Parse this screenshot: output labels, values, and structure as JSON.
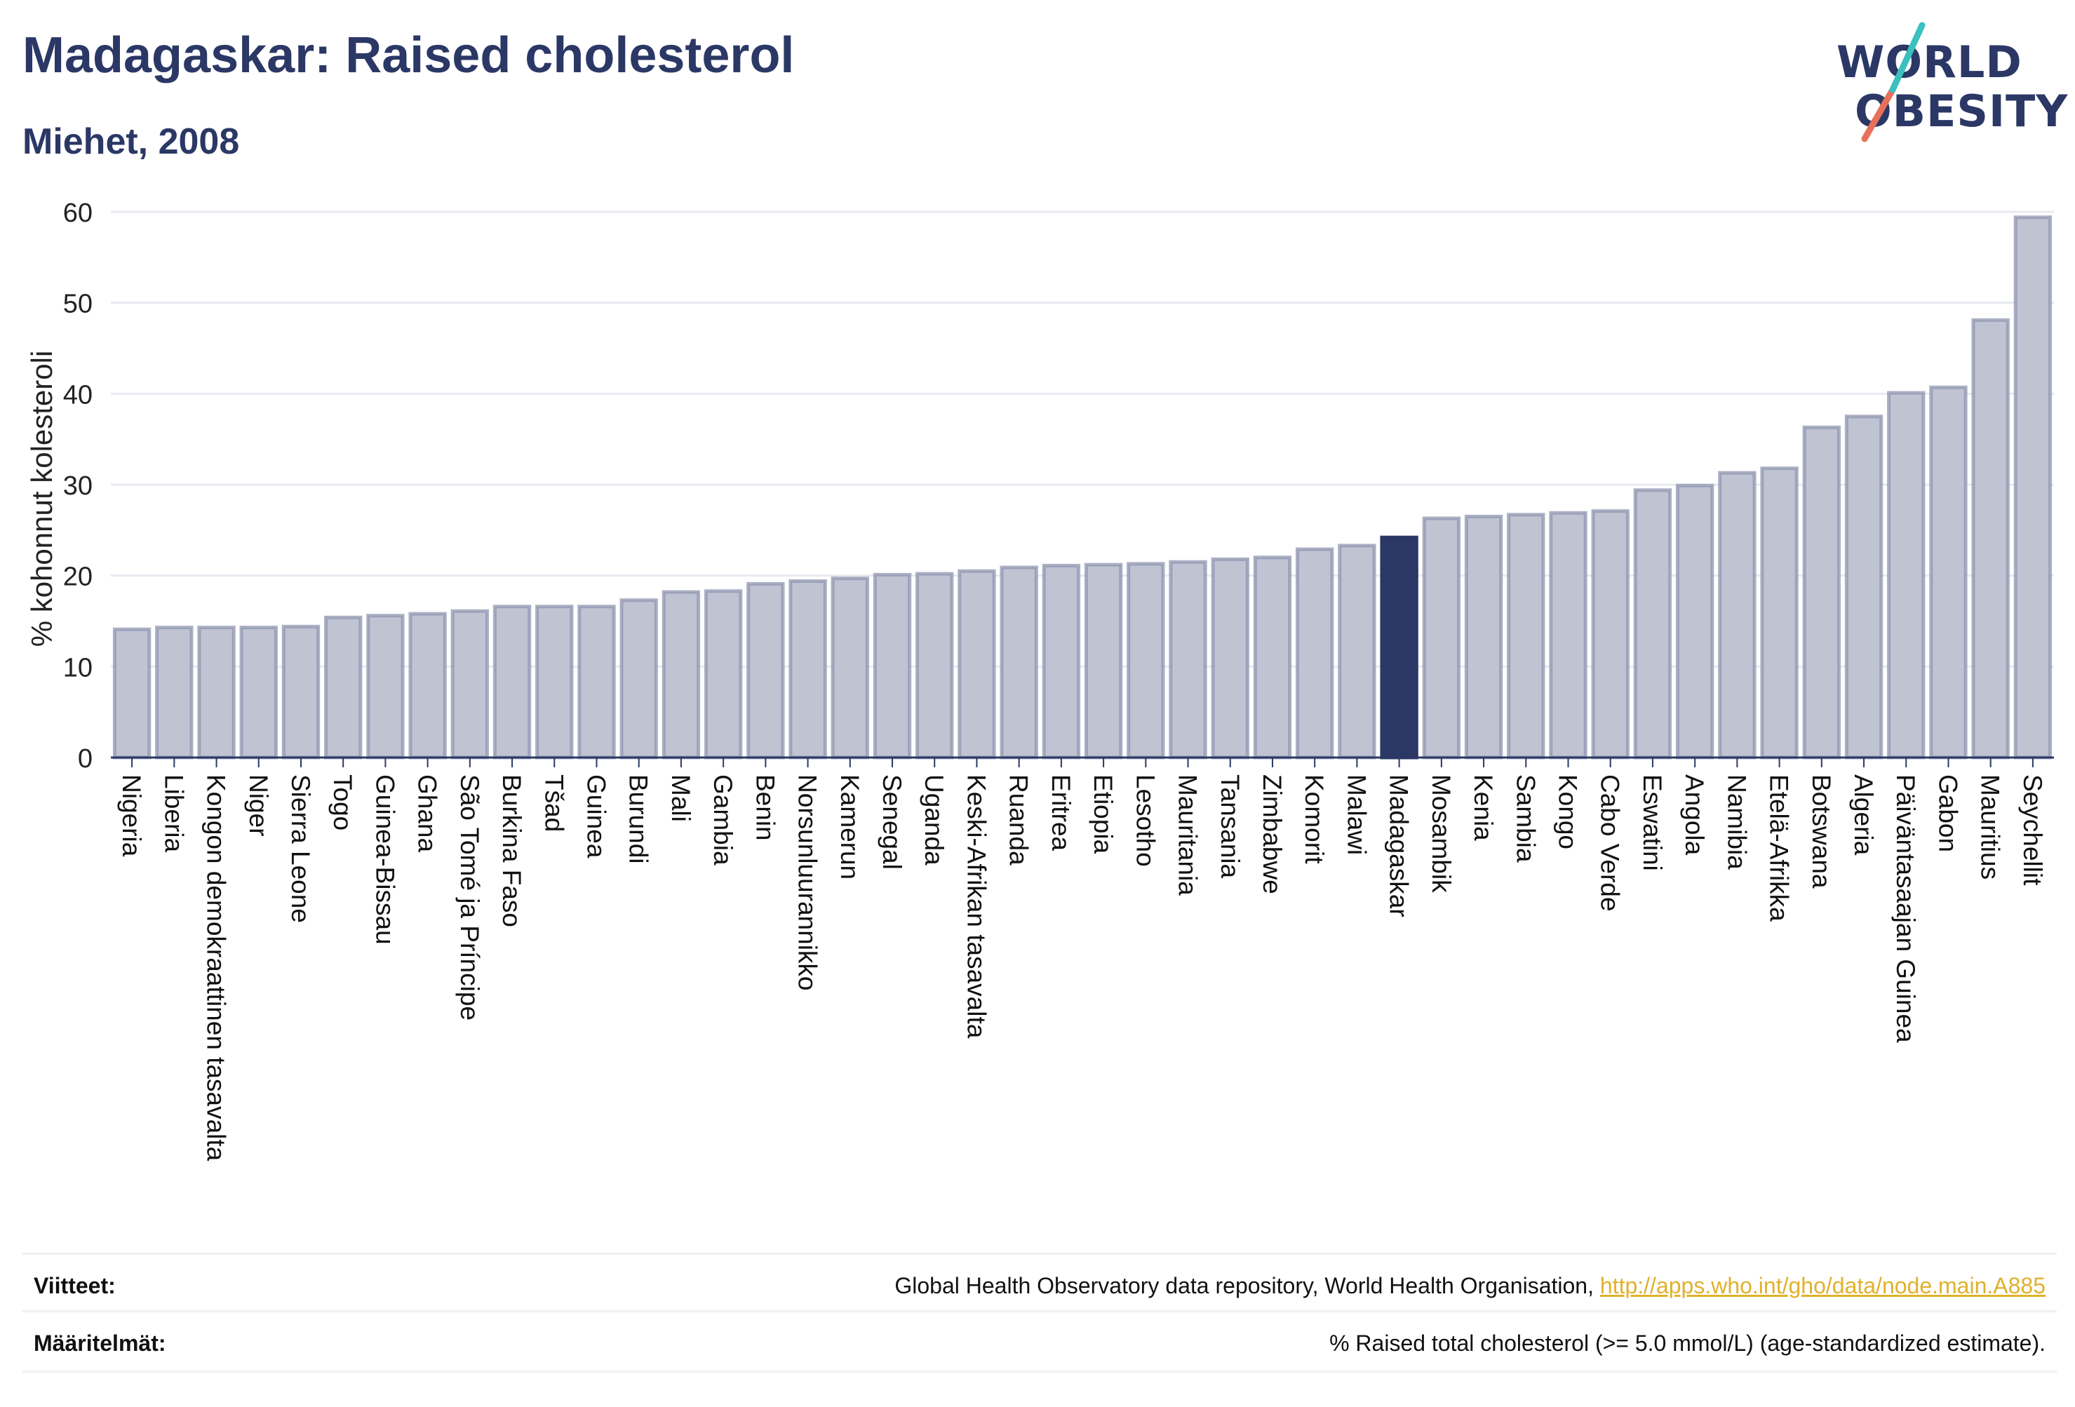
{
  "header": {
    "title": "Madagaskar: Raised cholesterol",
    "subtitle": "Miehet, 2008"
  },
  "logo": {
    "line1": "WORLD",
    "line2": "OBESITY",
    "accent_teal": "#3bbfbf",
    "accent_coral": "#e8705a"
  },
  "colors": {
    "bar": "#bfc3d2",
    "bar_border": "#8f95b0",
    "highlight": "#2b3866",
    "grid": "#e8eaf0",
    "axis": "#2b3866"
  },
  "chart_data": {
    "type": "bar",
    "ylabel": "% kohonnut kolesteroli",
    "ylim": [
      0,
      60
    ],
    "yticks": [
      0,
      10,
      20,
      30,
      40,
      50,
      60
    ],
    "highlight": "Madagaskar",
    "categories": [
      "Nigeria",
      "Liberia",
      "Kongon demokraattinen tasavalta",
      "Niger",
      "Sierra Leone",
      "Togo",
      "Guinea-Bissau",
      "Ghana",
      "São Tomé ja Príncipe",
      "Burkina Faso",
      "Tšad",
      "Guinea",
      "Burundi",
      "Mali",
      "Gambia",
      "Benin",
      "Norsunluurannikko",
      "Kamerun",
      "Senegal",
      "Uganda",
      "Keski-Afrikan tasavalta",
      "Ruanda",
      "Eritrea",
      "Etiopia",
      "Lesotho",
      "Mauritania",
      "Tansania",
      "Zimbabwe",
      "Komorit",
      "Malawi",
      "Madagaskar",
      "Mosambik",
      "Kenia",
      "Sambia",
      "Kongo",
      "Cabo Verde",
      "Eswatini",
      "Angola",
      "Namibia",
      "Etelä-Afrikka",
      "Botswana",
      "Algeria",
      "Päiväntasaajan Guinea",
      "Gabon",
      "Mauritius",
      "Seychellit"
    ],
    "values": [
      14.1,
      14.3,
      14.3,
      14.3,
      14.4,
      15.4,
      15.6,
      15.8,
      16.1,
      16.6,
      16.6,
      16.6,
      17.3,
      18.2,
      18.3,
      19.1,
      19.4,
      19.7,
      20.1,
      20.2,
      20.5,
      20.9,
      21.1,
      21.2,
      21.3,
      21.5,
      21.8,
      22.0,
      22.9,
      23.3,
      24.2,
      26.3,
      26.5,
      26.7,
      26.9,
      27.1,
      29.4,
      29.9,
      31.3,
      31.8,
      36.3,
      37.5,
      40.1,
      40.7,
      48.1,
      59.4
    ]
  },
  "footer": {
    "sources_label": "Viitteet:",
    "sources_text": "Global Health Observatory data repository, World Health Organisation,",
    "sources_link": "http://apps.who.int/gho/data/node.main.A885",
    "definitions_label": "Määritelmät:",
    "definitions_text": "% Raised total cholesterol (>= 5.0 mmol/L) (age-standardized estimate)."
  }
}
